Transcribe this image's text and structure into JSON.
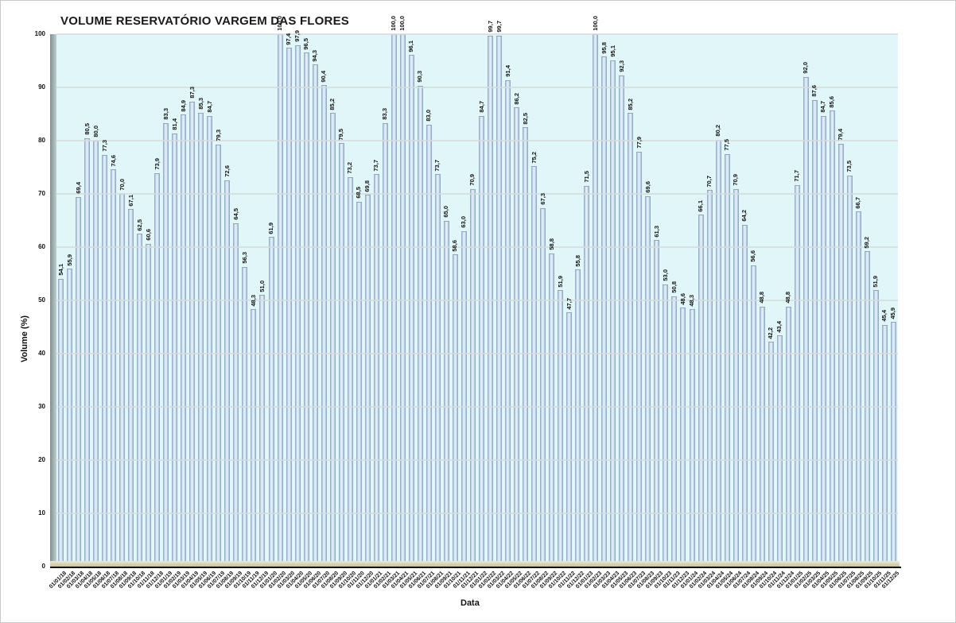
{
  "chart_data": {
    "type": "bar",
    "title": "VOLUME RESERVATÓRIO VARGEM DAS FLORES",
    "xlabel": "Data",
    "ylabel": "Volume (%)",
    "ylim": [
      0,
      100
    ],
    "yticks": [
      0,
      10,
      20,
      30,
      40,
      50,
      60,
      70,
      80,
      90,
      100
    ],
    "grid": "horizontal",
    "legend": "none",
    "value_label_decimal_separator": ",",
    "colors": {
      "plot_background": "#e1f6f8",
      "bar_fill": "#c6daee",
      "bar_edge": "#7e92a6",
      "floor": "#d9d2ab",
      "wall": "#9fadad",
      "gridline": "#d6dcdc",
      "text": "#111111"
    },
    "categories": [
      "01/01/18",
      "01/02/18",
      "01/03/18",
      "01/04/18",
      "01/05/18",
      "01/06/18",
      "01/07/18",
      "01/08/18",
      "01/09/18",
      "01/10/18",
      "01/11/18",
      "01/12/18",
      "01/01/19",
      "01/02/19",
      "01/03/19",
      "01/04/19",
      "01/05/19",
      "01/06/19",
      "01/07/19",
      "01/08/19",
      "01/09/19",
      "01/10/19",
      "01/11/19",
      "01/12/19",
      "01/01/20",
      "01/02/20",
      "01/03/20",
      "01/04/20",
      "01/05/20",
      "01/06/20",
      "01/07/20",
      "01/08/20",
      "01/09/20",
      "01/10/20",
      "01/11/20",
      "01/12/20",
      "01/01/21",
      "01/02/21",
      "01/03/21",
      "01/04/21",
      "01/05/21",
      "01/06/21",
      "01/07/21",
      "01/08/21",
      "01/09/21",
      "01/10/21",
      "01/11/21",
      "01/12/21",
      "01/01/22",
      "01/02/22",
      "01/03/22",
      "01/04/22",
      "01/05/22",
      "01/06/22",
      "01/07/22",
      "01/08/22",
      "01/09/22",
      "01/10/22",
      "01/11/22",
      "01/12/22",
      "01/01/23",
      "01/02/23",
      "01/03/23",
      "01/04/23",
      "01/05/23",
      "01/06/23",
      "01/07/23",
      "01/08/23",
      "01/09/23",
      "01/10/23",
      "01/11/23",
      "01/12/23",
      "01/01/24",
      "01/02/24",
      "01/03/24",
      "01/04/24",
      "01/05/24",
      "01/06/24",
      "01/07/24",
      "01/08/24",
      "01/09/24",
      "01/10/24",
      "01/11/24",
      "01/12/24",
      "01/01/25",
      "01/02/25",
      "01/03/25",
      "01/04/25",
      "01/05/25",
      "01/06/25",
      "01/07/25",
      "01/08/25",
      "01/09/25",
      "01/10/25",
      "01/11/25",
      "01/12/25"
    ],
    "values": [
      54.1,
      55.9,
      69.4,
      80.5,
      80.0,
      77.3,
      74.6,
      70.0,
      67.1,
      62.5,
      60.6,
      73.9,
      83.3,
      81.4,
      84.9,
      87.3,
      85.3,
      84.7,
      79.3,
      72.6,
      64.5,
      56.3,
      48.3,
      51.0,
      61.9,
      100.0,
      97.4,
      97.9,
      96.5,
      94.3,
      90.4,
      85.2,
      79.5,
      73.2,
      68.5,
      69.8,
      73.7,
      83.3,
      100.0,
      100.0,
      96.1,
      90.3,
      83.0,
      73.7,
      65.0,
      58.6,
      63.0,
      70.9,
      84.7,
      99.7,
      99.7,
      91.4,
      86.2,
      82.5,
      75.2,
      67.3,
      58.8,
      51.9,
      47.7,
      55.8,
      71.5,
      100.0,
      95.8,
      95.1,
      92.3,
      85.2,
      77.9,
      69.6,
      61.3,
      53.0,
      50.8,
      48.6,
      48.3,
      66.1,
      70.7,
      80.2,
      77.5,
      70.9,
      64.2,
      56.6,
      48.8,
      42.2,
      43.4,
      48.8,
      71.7,
      92.0,
      87.6,
      84.7,
      85.6,
      79.4,
      73.5,
      66.7,
      59.2,
      51.9,
      45.4,
      45.9
    ]
  }
}
